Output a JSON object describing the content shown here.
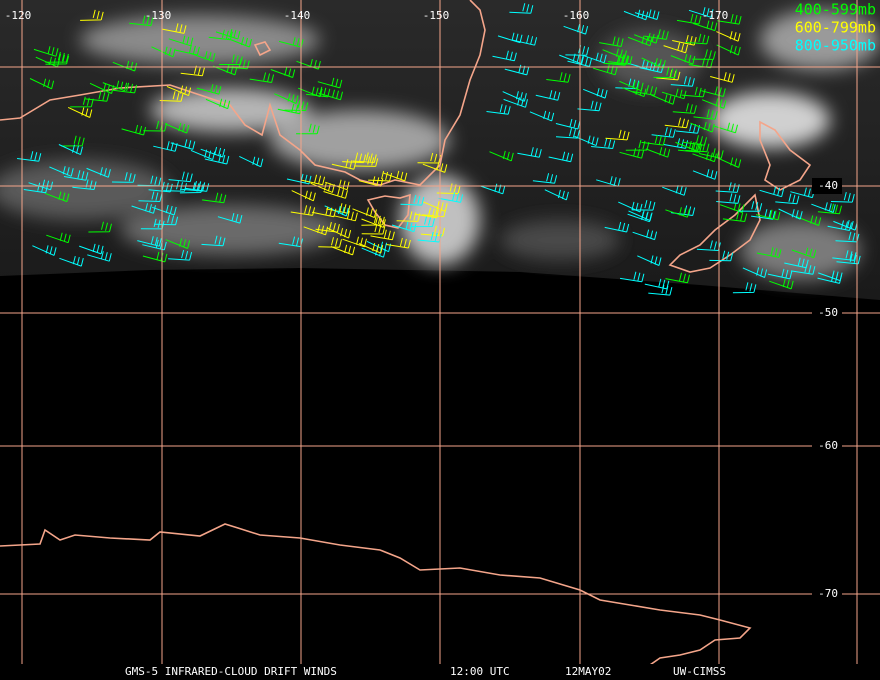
{
  "map": {
    "lon_labels": [
      "-120",
      "-130",
      "-140",
      "-150",
      "-160",
      "-170"
    ],
    "lat_labels": [
      "-40",
      "-50",
      "-60",
      "-70"
    ],
    "legend": [
      {
        "label": "400-599mb",
        "color": "#00ff00"
      },
      {
        "label": "600-799mb",
        "color": "#ffff00"
      },
      {
        "label": "800-950mb",
        "color": "#00ffff"
      }
    ],
    "footer": [
      "GMS-5 INFRARED-CLOUD DRIFT WINDS",
      "12:00 UTC",
      "12MAY02",
      "UW-CIMSS"
    ]
  }
}
